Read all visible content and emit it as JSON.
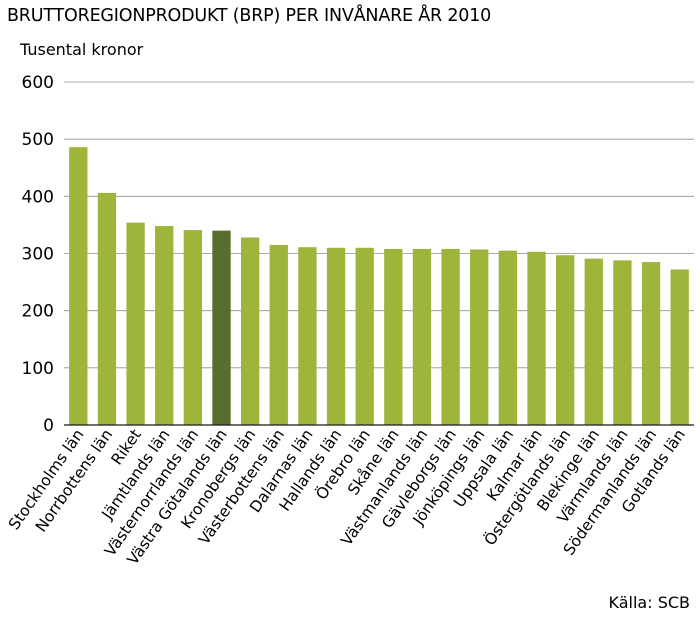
{
  "chart_data": {
    "type": "bar",
    "title": "BRUTTOREGIONPRODUKT (BRP) PER INVÅNARE ÅR 2010",
    "ylabel": "Tusental kronor",
    "xlabel": "",
    "source": "Källa: SCB",
    "ylim": [
      0,
      600
    ],
    "yticks": [
      0,
      100,
      200,
      300,
      400,
      500,
      600
    ],
    "grid": true,
    "bar_color": "#9cb53a",
    "highlight_color": "#566f30",
    "highlight_category": "Västra Götalands län",
    "categories": [
      "Stockholms län",
      "Norrbottens län",
      "Riket",
      "Jämtlands län",
      "Västernorrlands län",
      "Västra Götalands län",
      "Kronobergs län",
      "Västerbottens län",
      "Dalarnas län",
      "Hallands län",
      "Örebro län",
      "Skåne län",
      "Västmanlands län",
      "Gävleborgs län",
      "Jönköpings län",
      "Uppsala län",
      "Kalmar län",
      "Östergötlands län",
      "Blekinge län",
      "Värmlands län",
      "Södermanlands län",
      "Gotlands län"
    ],
    "values": [
      486,
      406,
      354,
      348,
      341,
      340,
      328,
      315,
      311,
      310,
      310,
      308,
      308,
      308,
      307,
      305,
      303,
      297,
      291,
      288,
      285,
      272
    ]
  }
}
